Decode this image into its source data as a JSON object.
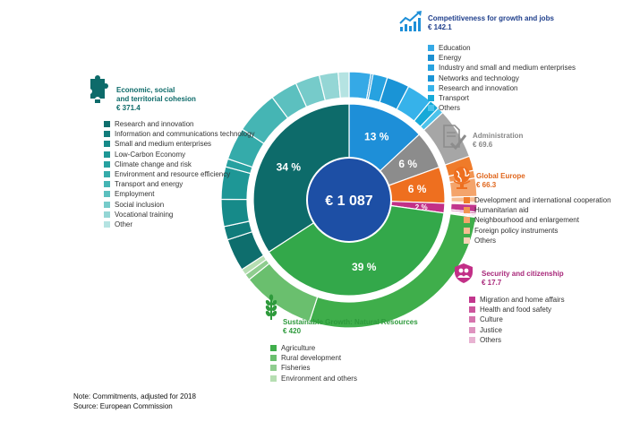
{
  "chart_data": {
    "type": "pie",
    "center_label": "€ 1 087",
    "inner_ring": [
      {
        "name": "Competitiveness for growth and jobs",
        "percent_label": "13 %",
        "value": 142.1,
        "color": "#1e8fd8"
      },
      {
        "name": "Administration",
        "percent_label": "6 %",
        "value": 69.6,
        "color": "#8c8c8c"
      },
      {
        "name": "Global Europe",
        "percent_label": "6 %",
        "value": 66.3,
        "color": "#ee6f1f"
      },
      {
        "name": "Security and citizenship",
        "percent_label": "2 %",
        "value": 17.7,
        "color": "#c22f87"
      },
      {
        "name": "Sustainable Growth: Natural Resources",
        "percent_label": "39 %",
        "value": 420,
        "color": "#33a84a"
      },
      {
        "name": "Economic, social and territorial cohesion",
        "percent_label": "34 %",
        "value": 371.4,
        "color": "#0d6b6a"
      }
    ],
    "outer_ring": [
      {
        "group": "competitiveness",
        "items": [
          {
            "label": "Education",
            "share": 0.21,
            "color": "#35a9e6"
          },
          {
            "label": "Energy",
            "share": 0.02,
            "color": "#1b8fd1"
          },
          {
            "label": "Industry and small and medium enterprises",
            "share": 0.14,
            "color": "#27a2e0"
          },
          {
            "label": "Networks and technology",
            "share": 0.22,
            "color": "#1a94d6"
          },
          {
            "label": "Research and innovation",
            "share": 0.25,
            "color": "#36b2ea"
          },
          {
            "label": "Transport",
            "share": 0.1,
            "color": "#16a9d8"
          },
          {
            "label": "Others",
            "share": 0.06,
            "color": "#4cc2ea"
          }
        ]
      },
      {
        "group": "administration",
        "items": [
          {
            "label": "Administration",
            "share": 1,
            "color": "#a6a6a6"
          }
        ]
      },
      {
        "group": "global",
        "items": [
          {
            "label": "Development and international cooperation",
            "share": 0.3,
            "color": "#ef7b2a"
          },
          {
            "label": "Humanitarian aid",
            "share": 0.16,
            "color": "#f29452"
          },
          {
            "label": "Neighbourhood and enlargement",
            "share": 0.38,
            "color": "#f4a46b"
          },
          {
            "label": "Foreign policy instruments",
            "share": 0.12,
            "color": "#f7bd92"
          },
          {
            "label": "Others",
            "share": 0.04,
            "color": "#fad3b7"
          }
        ]
      },
      {
        "group": "security",
        "items": [
          {
            "label": "Migration and home affairs",
            "share": 0.6,
            "color": "#c2368d"
          },
          {
            "label": "Health and food safety",
            "share": 0.15,
            "color": "#cc559c"
          },
          {
            "label": "Culture",
            "share": 0.1,
            "color": "#d574ad"
          },
          {
            "label": "Justice",
            "share": 0.1,
            "color": "#de93bf"
          },
          {
            "label": "Others",
            "share": 0.05,
            "color": "#e8b3d2"
          }
        ]
      },
      {
        "group": "natural",
        "items": [
          {
            "label": "Agriculture",
            "share": 0.72,
            "color": "#3fae4b"
          },
          {
            "label": "Rural development",
            "share": 0.24,
            "color": "#6abf6e"
          },
          {
            "label": "Fisheries",
            "share": 0.02,
            "color": "#8fcd8f"
          },
          {
            "label": "Environment and others",
            "share": 0.02,
            "color": "#b6deb2"
          }
        ]
      },
      {
        "group": "cohesion",
        "items": [
          {
            "label": "Research  and innovation",
            "share": 0.12,
            "color": "#0e6e6d"
          },
          {
            "label": "Information and communications technology",
            "share": 0.05,
            "color": "#117c7b"
          },
          {
            "label": "Small and medium enterprises",
            "share": 0.1,
            "color": "#168a89"
          },
          {
            "label": "Low-Carbon Economy",
            "share": 0.12,
            "color": "#1e9796"
          },
          {
            "label": "Climate change and risk",
            "share": 0.03,
            "color": "#27a1a0"
          },
          {
            "label": "Environment and resource efficiency",
            "share": 0.12,
            "color": "#35abaa"
          },
          {
            "label": "Transport and energy",
            "share": 0.16,
            "color": "#45b5b4"
          },
          {
            "label": "Employment",
            "share": 0.1,
            "color": "#5cc0bf"
          },
          {
            "label": "Social inclusion",
            "share": 0.09,
            "color": "#76cbca"
          },
          {
            "label": "Vocational training",
            "share": 0.07,
            "color": "#94d6d5"
          },
          {
            "label": "Other",
            "share": 0.04,
            "color": "#b5e3e2"
          }
        ]
      }
    ]
  },
  "groups": {
    "competitiveness": {
      "title": "Competitiveness for growth and jobs",
      "amount": "€ 142.1",
      "color": "#1f3f8c",
      "items": [
        "Education",
        "Energy",
        "Industry and small and medium enterprises",
        "Networks and technology",
        "Research and innovation",
        "Transport",
        "Others"
      ],
      "swatches": [
        "#35a9e6",
        "#1b8fd1",
        "#27a2e0",
        "#1a94d6",
        "#36b2ea",
        "#16a9d8",
        "#4cc2ea"
      ]
    },
    "administration": {
      "title": "Administration",
      "amount": "€ 69.6",
      "color": "#888888"
    },
    "global": {
      "title": "Global Europe",
      "amount": "€ 66.3",
      "color": "#e0661c",
      "items": [
        "Development and international cooperation",
        "Humanitarian aid",
        "Neighbourhood and enlargement",
        "Foreign policy instruments",
        "Others"
      ],
      "swatches": [
        "#ef7b2a",
        "#f29452",
        "#f4a46b",
        "#f7bd92",
        "#fad3b7"
      ]
    },
    "security": {
      "title": "Security and citizenship",
      "amount": "€ 17.7",
      "color": "#a8287a",
      "items": [
        "Migration and home affairs",
        "Health and food safety",
        "Culture",
        "Justice",
        "Others"
      ],
      "swatches": [
        "#c2368d",
        "#cc559c",
        "#d574ad",
        "#de93bf",
        "#e8b3d2"
      ]
    },
    "natural": {
      "title": "Sustainable Growth: Natural Resources",
      "amount": "€ 420",
      "color": "#2e9a3c",
      "items": [
        "Agriculture",
        "Rural development",
        "Fisheries",
        "Environment and others"
      ],
      "swatches": [
        "#3fae4b",
        "#6abf6e",
        "#8fcd8f",
        "#b6deb2"
      ]
    },
    "cohesion": {
      "title": "Economic, social\nand territorial cohesion",
      "amount": "€ 371.4",
      "color": "#0d6b6a",
      "items": [
        "Research  and innovation",
        "Information and communications technology",
        "Small and medium enterprises",
        "Low-Carbon Economy",
        "Climate change and risk",
        "Environment and resource efficiency",
        "Transport and energy",
        "Employment",
        "Social inclusion",
        "Vocational training",
        "Other"
      ],
      "swatches": [
        "#0e6e6d",
        "#117c7b",
        "#168a89",
        "#1e9796",
        "#27a1a0",
        "#35abaa",
        "#45b5b4",
        "#5cc0bf",
        "#76cbca",
        "#94d6d5",
        "#b5e3e2"
      ]
    }
  },
  "note": {
    "line1": "Note: Commitments, adjusted for 2018",
    "line2": "Source: European Commission"
  }
}
